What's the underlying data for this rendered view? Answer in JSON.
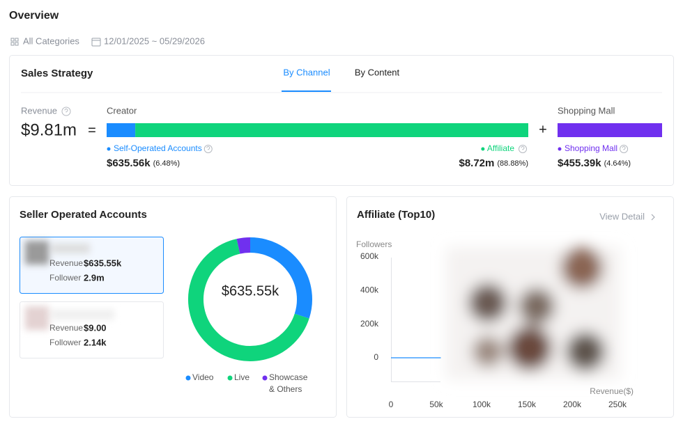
{
  "header": {
    "title": "Overview",
    "category": "All Categories",
    "date_range": "12/01/2025 ~ 05/29/2026"
  },
  "sales_strategy": {
    "title": "Sales Strategy",
    "tabs": [
      "By Channel",
      "By Content"
    ],
    "revenue_label": "Revenue",
    "revenue_total": "$9.81m",
    "equals_sign": "=",
    "plus_sign": "+",
    "creator_label": "Creator",
    "shopping_mall_label": "Shopping Mall",
    "segments": [
      {
        "name": "Self-Operated Accounts",
        "value": "$635.56k",
        "share": 6.48,
        "share_label": "(6.48%)",
        "color": "#1a8cff"
      },
      {
        "name": "Affiliate",
        "value": "$8.72m",
        "share": 88.88,
        "share_label": "(88.88%)",
        "color": "#0fd47c"
      },
      {
        "name": "Shopping Mall",
        "value": "$455.39k",
        "share": 4.64,
        "share_label": "(4.64%)",
        "color": "#7030ef"
      }
    ]
  },
  "seller_accounts": {
    "title": "Seller Operated Accounts",
    "accounts": [
      {
        "revenue_label": "Revenue",
        "revenue": "$635.55k",
        "follower_label": "Follower",
        "followers": "2.9m"
      },
      {
        "revenue_label": "Revenue",
        "revenue": "$9.00",
        "follower_label": "Follower",
        "followers": "2.14k"
      }
    ],
    "donut": {
      "type": "pie",
      "center_label": "$635.55k",
      "series": [
        {
          "name": "Video",
          "color": "#1a8cff",
          "value": 30
        },
        {
          "name": "Live",
          "color": "#0fd47c",
          "value": 66.5
        },
        {
          "name": "Showcase & Others",
          "color": "#7030ef",
          "value": 3.5
        }
      ]
    }
  },
  "affiliate": {
    "title": "Affiliate (Top10)",
    "link": "View Detail",
    "chart": {
      "type": "line",
      "y_label": "Followers",
      "x_label": "Revenue($)",
      "xlim": [
        0,
        250000
      ],
      "ylim": [
        -140000,
        600000
      ],
      "xticks": [
        0,
        {
          "value": 50000,
          "label": "50k"
        },
        {
          "value": 100000,
          "label": "100k"
        },
        {
          "value": 150000,
          "label": "150k"
        },
        {
          "value": 200000,
          "label": "200k"
        },
        {
          "value": 250000,
          "label": "250k"
        }
      ],
      "yticks": [
        0,
        {
          "value": 200000,
          "label": "200k"
        },
        {
          "value": 400000,
          "label": "400k"
        },
        {
          "value": 600000,
          "label": "600k"
        }
      ],
      "series": [
        {
          "color": "#1a8cff",
          "x": [
            0,
            55000
          ],
          "values": [
            0,
            0
          ]
        }
      ]
    }
  }
}
